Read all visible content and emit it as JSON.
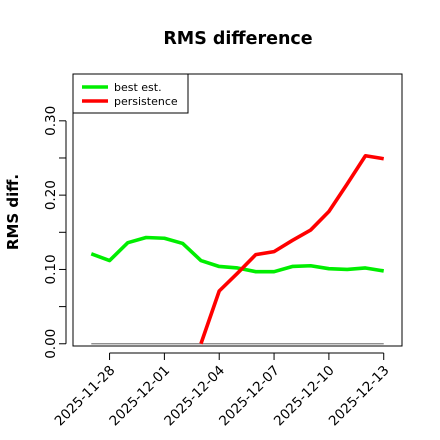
{
  "chart_data": {
    "type": "line",
    "title": "RMS difference",
    "xlabel": "",
    "ylabel": "RMS diff.",
    "x": [
      "2025-11-27",
      "2025-11-28",
      "2025-11-29",
      "2025-11-30",
      "2025-12-01",
      "2025-12-02",
      "2025-12-03",
      "2025-12-04",
      "2025-12-05",
      "2025-12-06",
      "2025-12-07",
      "2025-12-08",
      "2025-12-09",
      "2025-12-10",
      "2025-12-11",
      "2025-12-12",
      "2025-12-13"
    ],
    "xlim": [
      "2025-11-26",
      "2025-12-14"
    ],
    "xticks": [
      "2025-11-28",
      "2025-12-01",
      "2025-12-04",
      "2025-12-07",
      "2025-12-10",
      "2025-12-13"
    ],
    "ylim": [
      -0.003,
      0.363
    ],
    "yticks": [
      0.0,
      0.05,
      0.1,
      0.15,
      0.2,
      0.25,
      0.3
    ],
    "ytick_labels": [
      "0.00",
      "",
      "0.10",
      "",
      "0.20",
      "",
      "0.30"
    ],
    "legend_position": "top-left",
    "grid": false,
    "series": [
      {
        "name": "best est.",
        "color": "#00ee00",
        "values": [
          0.121,
          0.112,
          0.136,
          0.143,
          0.142,
          0.135,
          0.112,
          0.104,
          0.102,
          0.097,
          0.097,
          0.104,
          0.105,
          0.101,
          0.1,
          0.102,
          0.098
        ]
      },
      {
        "name": "persistence",
        "color": "#ff0000",
        "values": [
          null,
          null,
          null,
          null,
          null,
          null,
          0.0,
          0.071,
          0.095,
          0.12,
          0.124,
          0.139,
          0.153,
          0.178,
          0.215,
          0.253,
          0.249
        ]
      }
    ],
    "reference_line": {
      "y": 0,
      "color": "#808080"
    }
  }
}
